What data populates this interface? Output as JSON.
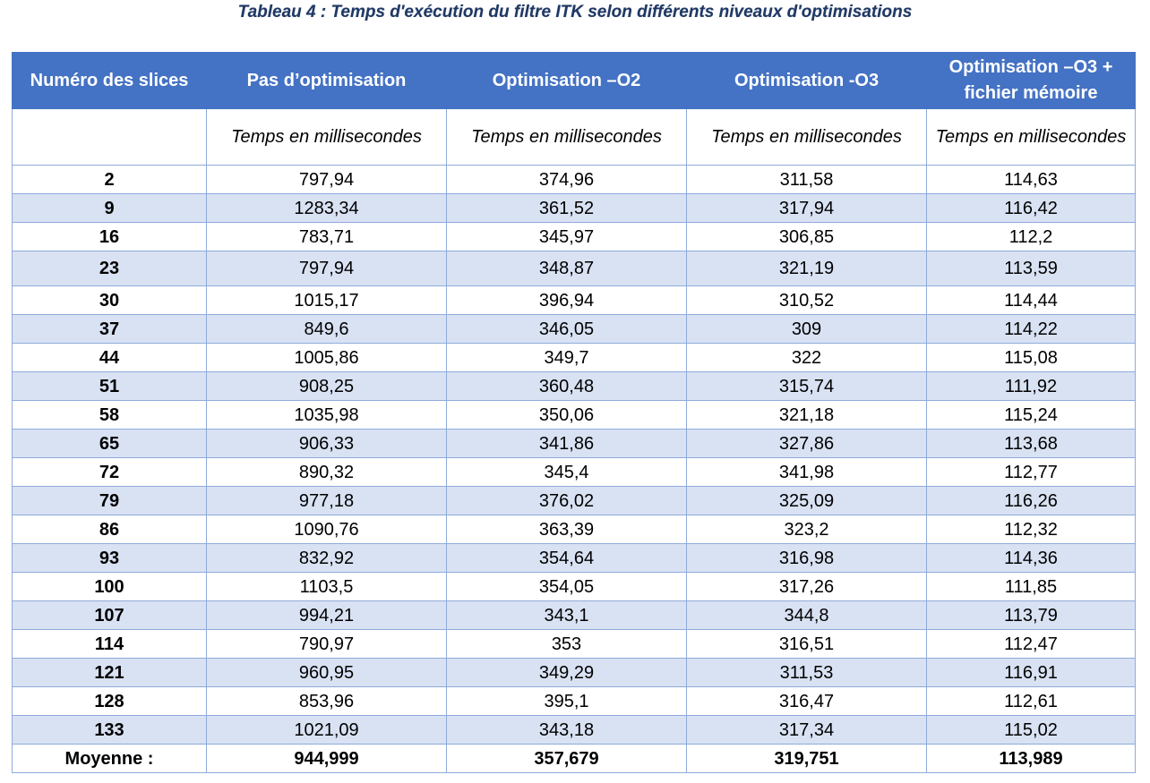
{
  "caption": "Tableau 4 : Temps d'exécution du filtre ITK selon différents niveaux d'optimisations",
  "headers": [
    "Numéro des slices",
    "Pas d’optimisation",
    "Optimisation –O2",
    "Optimisation -O3",
    "Optimisation –O3 + fichier mémoire"
  ],
  "subheaders": [
    "",
    "Temps en millisecondes",
    "Temps en millisecondes",
    "Temps en millisecondes",
    "Temps en millisecondes"
  ],
  "rows": [
    [
      "2",
      "797,94",
      "374,96",
      "311,58",
      "114,63"
    ],
    [
      "9",
      "1283,34",
      "361,52",
      "317,94",
      "116,42"
    ],
    [
      "16",
      "783,71",
      "345,97",
      "306,85",
      "112,2"
    ],
    [
      "23",
      "797,94",
      "348,87",
      "321,19",
      "113,59"
    ],
    [
      "30",
      "1015,17",
      "396,94",
      "310,52",
      "114,44"
    ],
    [
      "37",
      "849,6",
      "346,05",
      "309",
      "114,22"
    ],
    [
      "44",
      "1005,86",
      "349,7",
      "322",
      "115,08"
    ],
    [
      "51",
      "908,25",
      "360,48",
      "315,74",
      "111,92"
    ],
    [
      "58",
      "1035,98",
      "350,06",
      "321,18",
      "115,24"
    ],
    [
      "65",
      "906,33",
      "341,86",
      "327,86",
      "113,68"
    ],
    [
      "72",
      "890,32",
      "345,4",
      "341,98",
      "112,77"
    ],
    [
      "79",
      "977,18",
      "376,02",
      "325,09",
      "116,26"
    ],
    [
      "86",
      "1090,76",
      "363,39",
      "323,2",
      "112,32"
    ],
    [
      "93",
      "832,92",
      "354,64",
      "316,98",
      "114,36"
    ],
    [
      "100",
      "1103,5",
      "354,05",
      "317,26",
      "111,85"
    ],
    [
      "107",
      "994,21",
      "343,1",
      "344,8",
      "113,79"
    ],
    [
      "114",
      "790,97",
      "353",
      "316,51",
      "112,47"
    ],
    [
      "121",
      "960,95",
      "349,29",
      "311,53",
      "116,91"
    ],
    [
      "128",
      "853,96",
      "395,1",
      "316,47",
      "112,61"
    ],
    [
      "133",
      "1021,09",
      "343,18",
      "317,34",
      "115,02"
    ]
  ],
  "average": [
    "Moyenne :",
    "944,999",
    "357,679",
    "319,751",
    "113,989"
  ],
  "colors": {
    "header_bg": "#4472c4",
    "alt_row_bg": "#d9e2f3",
    "border": "#8eaadb",
    "caption": "#1f3864"
  }
}
